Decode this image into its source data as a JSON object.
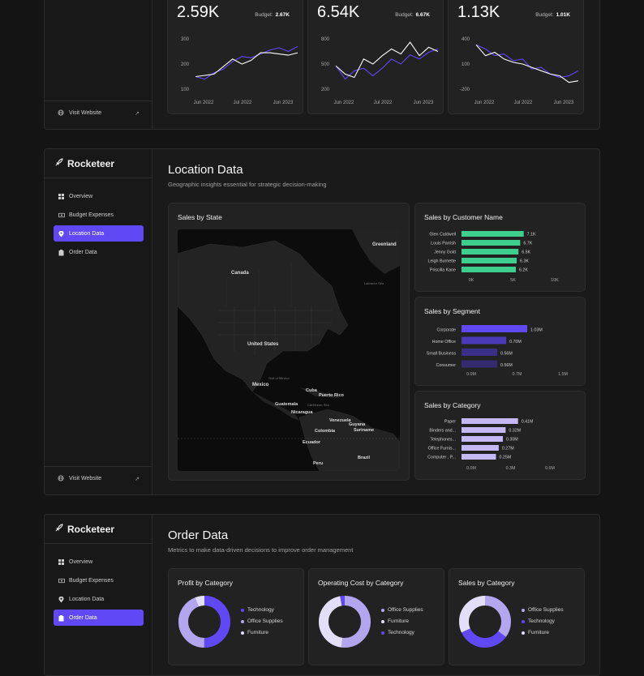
{
  "brand": {
    "name": "Rocketeer"
  },
  "nav": {
    "overview": "Overview",
    "budget": "Budget Expenses",
    "location": "Location Data",
    "order": "Order Data",
    "visit": "Visit Website"
  },
  "colors": {
    "accent": "#6148f5",
    "green": "#3ecf8e",
    "lavender": "#c4b8f5",
    "line_purple": "#6148f5",
    "line_white": "#ffffff"
  },
  "kpis": [
    {
      "value": "2.59K",
      "budget_label": "Budget:",
      "budget": "2.67K"
    },
    {
      "value": "6.54K",
      "budget_label": "Budget:",
      "budget": "6.67K"
    },
    {
      "value": "1.13K",
      "budget_label": "Budget:",
      "budget": "1.01K"
    }
  ],
  "location": {
    "title": "Location Data",
    "subtitle": "Geographic insights essential for strategic decision-making",
    "map_title": "Sales by State",
    "map_labels": [
      "Greenland",
      "Canada",
      "United States",
      "Mexico",
      "Cuba",
      "Puerto Rico",
      "Guatemala",
      "Nicaragua",
      "Venezuela",
      "Guyana",
      "Suriname",
      "Colombia",
      "Ecuador",
      "Peru",
      "Brazil",
      "Labrador Sea",
      "Gulf of Mexico",
      "Caribbean Sea"
    ],
    "customer_title": "Sales by Customer Name",
    "segment_title": "Sales by Segment",
    "category_title": "Sales by Category"
  },
  "order": {
    "title": "Order Data",
    "subtitle": "Metrics to make data-driven decisions to improve order management",
    "profit_title": "Profit by Category",
    "profit_legend": [
      "Technology",
      "Office Supplies",
      "Furniture"
    ],
    "opcost_title": "Operating Cost by Category",
    "opcost_legend": [
      "Office Supplies",
      "Furniture",
      "Technology"
    ],
    "sales_title": "Sales by Category",
    "sales_legend": [
      "Office Supplies",
      "Technology",
      "Furniture"
    ]
  },
  "chart_data": [
    {
      "type": "line",
      "x_ticks": [
        "Jun 2022",
        "Jul 2022",
        "Jun 2023"
      ],
      "y_ticks": [
        "300",
        "200",
        "100"
      ],
      "ylim": [
        100,
        300
      ],
      "series": [
        {
          "color": "#6148f5",
          "values": [
            150,
            140,
            165,
            180,
            210,
            230,
            225,
            240,
            255,
            265,
            250,
            270
          ]
        },
        {
          "color": "#ffffff",
          "values": [
            150,
            155,
            160,
            190,
            220,
            200,
            215,
            245,
            245,
            240,
            235,
            245
          ]
        }
      ]
    },
    {
      "type": "line",
      "x_ticks": [
        "Jun 2022",
        "Jul 2022",
        "Jun 2023"
      ],
      "y_ticks": [
        "800",
        "500",
        "200"
      ],
      "ylim": [
        200,
        800
      ],
      "series": [
        {
          "color": "#6148f5",
          "values": [
            480,
            320,
            420,
            450,
            360,
            450,
            560,
            500,
            610,
            560,
            640,
            680
          ]
        },
        {
          "color": "#ffffff",
          "values": [
            480,
            380,
            340,
            560,
            500,
            600,
            680,
            620,
            760,
            600,
            700,
            650
          ]
        }
      ]
    },
    {
      "type": "line",
      "x_ticks": [
        "Jun 2022",
        "Jul 2022",
        "Jun 2023"
      ],
      "y_ticks": [
        "400",
        "100",
        "-200"
      ],
      "ylim": [
        -200,
        400
      ],
      "series": [
        {
          "color": "#6148f5",
          "values": [
            330,
            280,
            200,
            220,
            140,
            160,
            40,
            60,
            -20,
            -60,
            -40,
            20
          ]
        },
        {
          "color": "#ffffff",
          "values": [
            330,
            200,
            240,
            160,
            120,
            100,
            60,
            20,
            -20,
            -40,
            -120,
            -100
          ]
        }
      ]
    },
    {
      "type": "bar",
      "orientation": "horizontal",
      "title": "Sales by Customer Name",
      "categories": [
        "Glen Caldwell",
        "Louis Parrish",
        "Jenny Gold",
        "Leigh Burnette",
        "Priscilla Kane"
      ],
      "values": [
        7.1,
        6.7,
        6.5,
        6.3,
        6.2
      ],
      "value_labels": [
        "7.1K",
        "6.7K",
        "6.5K",
        "6.3K",
        "6.2K"
      ],
      "x_ticks": [
        "0K",
        "5K",
        "10K"
      ],
      "xlim": [
        0,
        10
      ],
      "color": "#3ecf8e"
    },
    {
      "type": "bar",
      "orientation": "horizontal",
      "title": "Sales by Segment",
      "categories": [
        "Corporate",
        "Home Office",
        "Small Business",
        "Consumer"
      ],
      "values": [
        1.03,
        0.7,
        0.56,
        0.56
      ],
      "value_labels": [
        "1.03M",
        "0.70M",
        "0.56M",
        "0.56M"
      ],
      "x_ticks": [
        "0.0M",
        "0.7M",
        "1.5M"
      ],
      "xlim": [
        0,
        1.5
      ],
      "colors": [
        "#6148f5",
        "#4a3ab8",
        "#3a2f88",
        "#332a70"
      ]
    },
    {
      "type": "bar",
      "orientation": "horizontal",
      "title": "Sales by Category",
      "categories": [
        "Paper",
        "Binders and...",
        "Telephones...",
        "Office Furnis...",
        "Computer , P..."
      ],
      "values": [
        0.41,
        0.32,
        0.3,
        0.27,
        0.25
      ],
      "value_labels": [
        "0.41M",
        "0.32M",
        "0.30M",
        "0.27M",
        "0.25M"
      ],
      "x_ticks": [
        "0.0M",
        "0.3M",
        "0.6M"
      ],
      "xlim": [
        0,
        0.6
      ],
      "color": "#c4b8f5"
    },
    {
      "type": "pie",
      "title": "Profit by Category",
      "labels": [
        "Technology",
        "Office Supplies",
        "Furniture"
      ],
      "values": [
        50,
        44,
        6
      ],
      "colors": [
        "#6148f5",
        "#b3a6ee",
        "#e4dff8"
      ]
    },
    {
      "type": "pie",
      "title": "Operating Cost by Category",
      "labels": [
        "Office Supplies",
        "Furniture",
        "Technology"
      ],
      "values": [
        52,
        45,
        3
      ],
      "colors": [
        "#b3a6ee",
        "#e4dff8",
        "#6148f5"
      ]
    },
    {
      "type": "pie",
      "title": "Sales by Category",
      "labels": [
        "Office Supplies",
        "Technology",
        "Furniture"
      ],
      "values": [
        35,
        33,
        32
      ],
      "colors": [
        "#b3a6ee",
        "#6148f5",
        "#e4dff8"
      ]
    }
  ]
}
